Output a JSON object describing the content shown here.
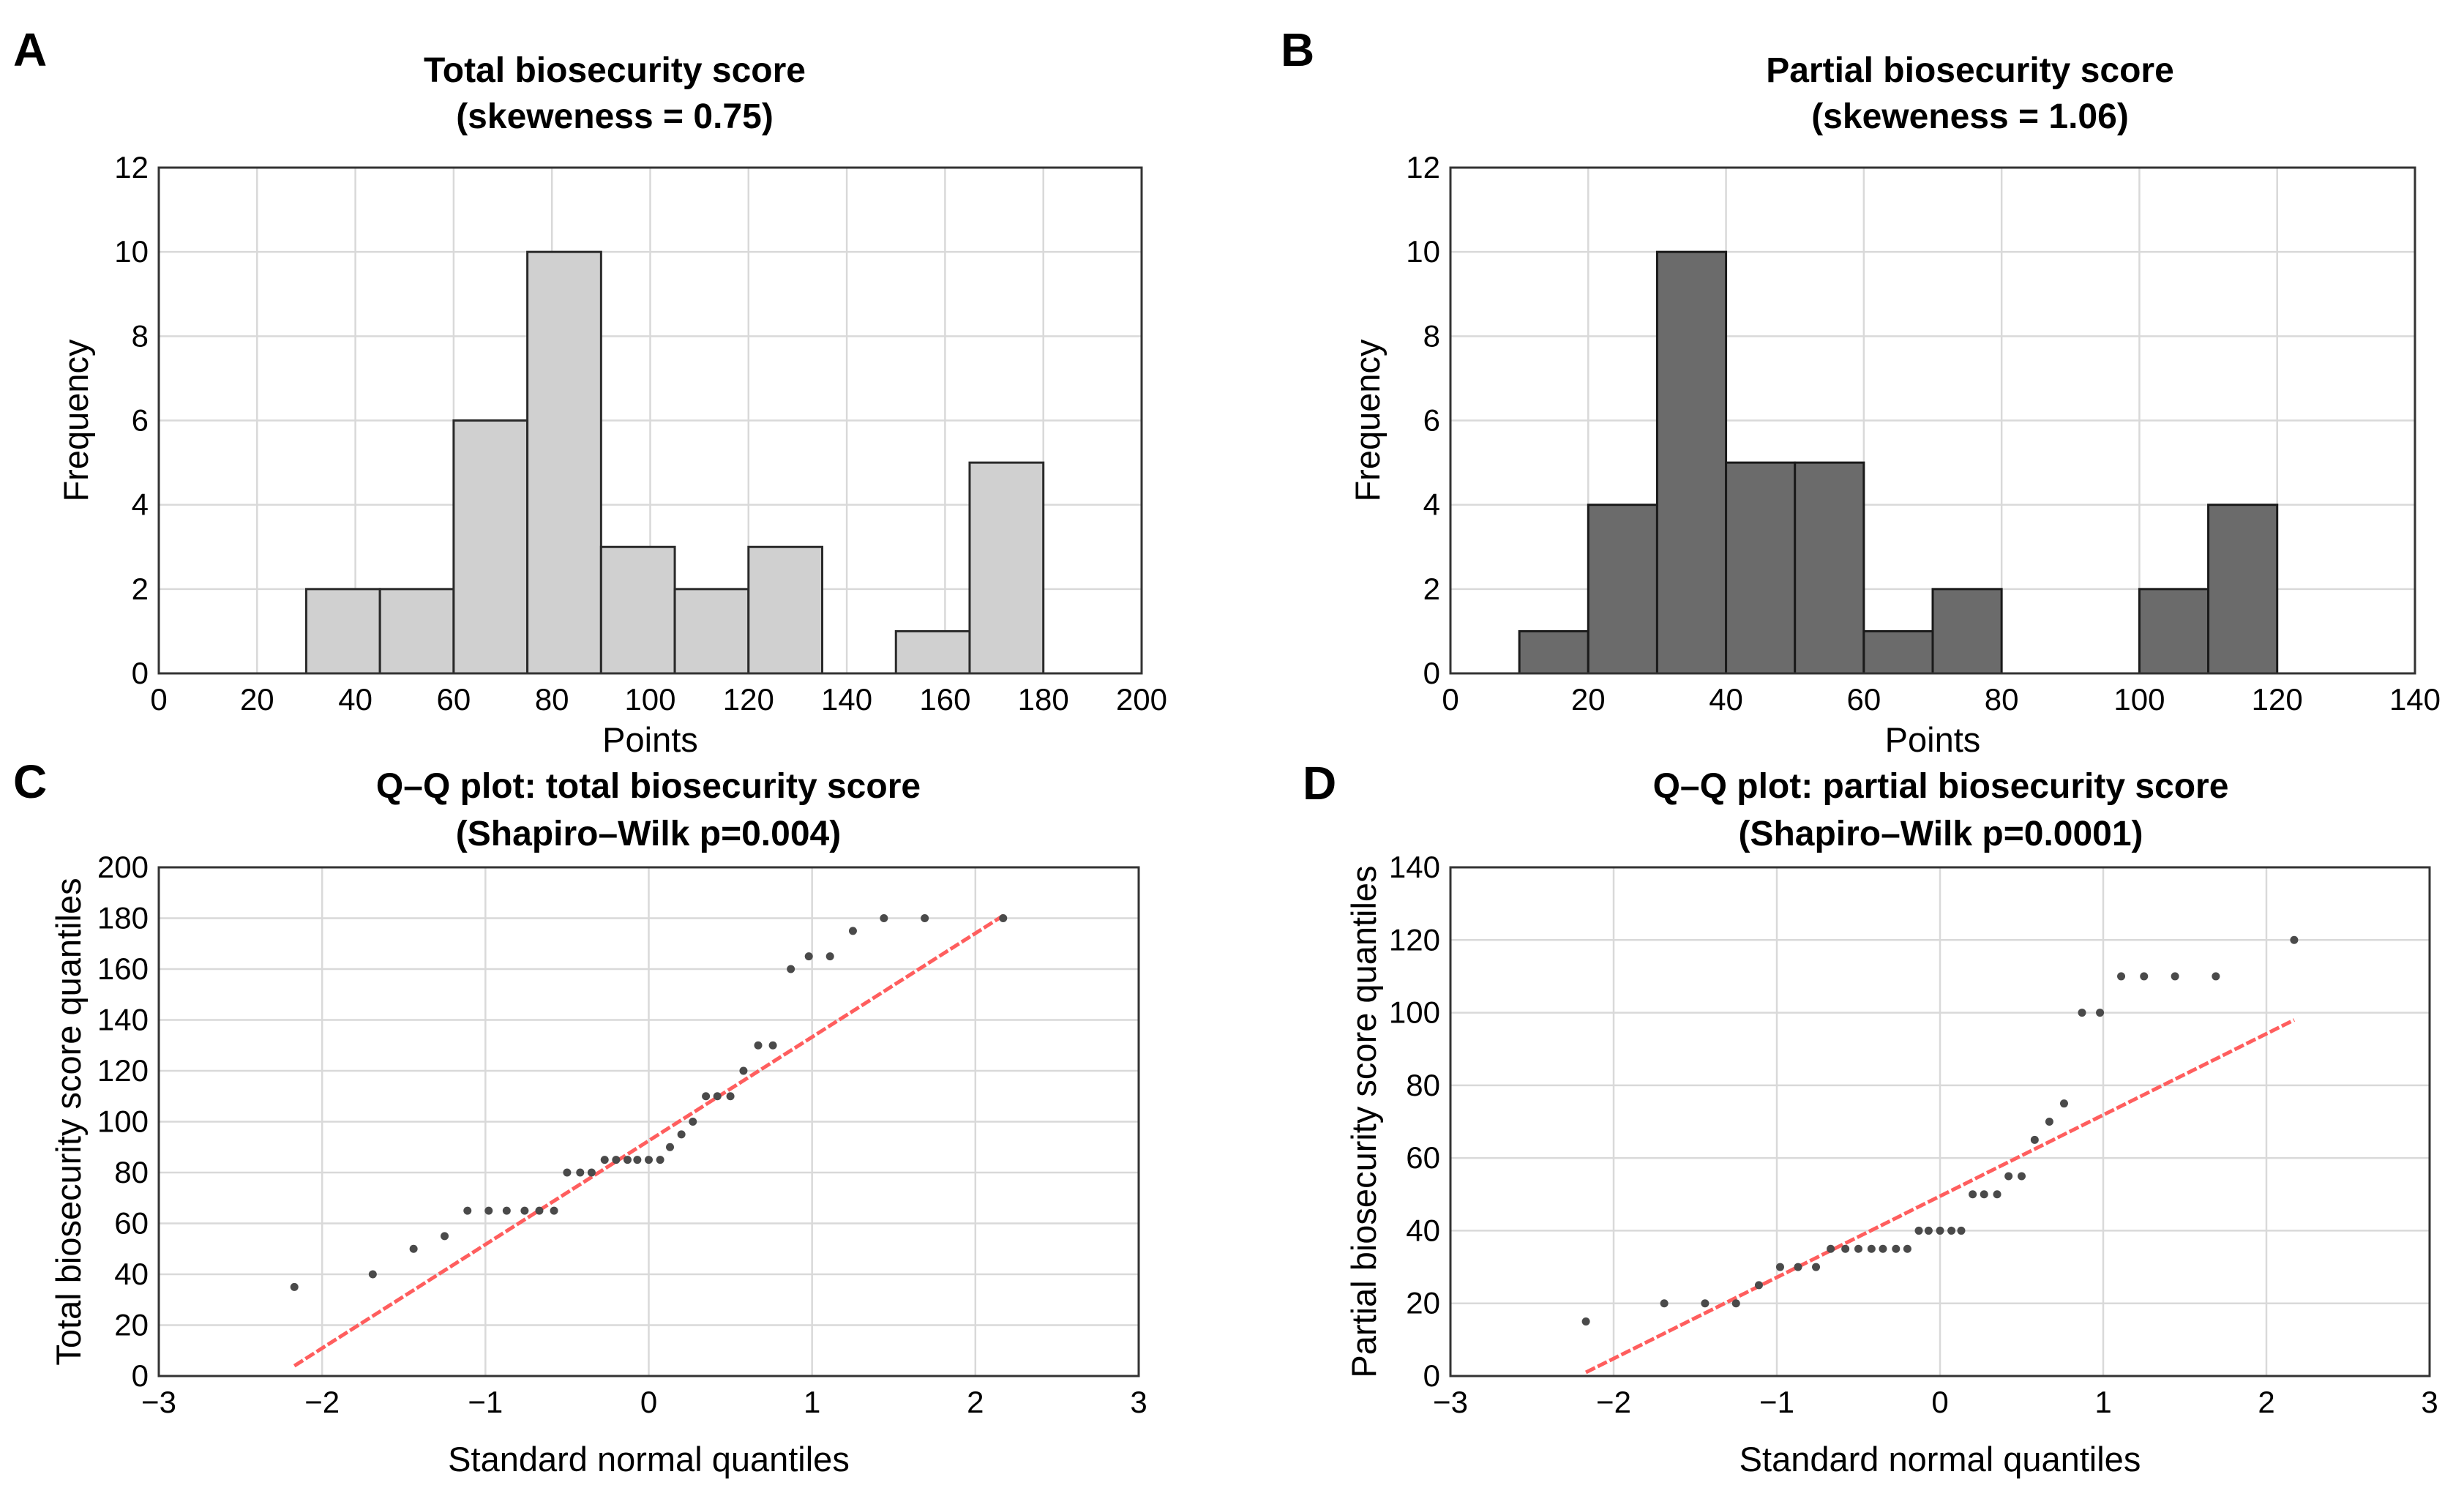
{
  "chart_data": [
    {
      "panel": "A",
      "type": "bar",
      "title": [
        "Total biosecurity score",
        "(skeweness = 0.75)"
      ],
      "xlabel": "Points",
      "ylabel": "Frequency",
      "xlim": [
        0,
        200
      ],
      "ylim": [
        0,
        12
      ],
      "xticks": [
        0,
        20,
        40,
        60,
        80,
        100,
        120,
        140,
        160,
        180,
        200
      ],
      "yticks": [
        0,
        2,
        4,
        6,
        8,
        10,
        12
      ],
      "grid": true,
      "bin_edges": [
        30,
        45,
        60,
        75,
        90,
        105,
        120,
        135,
        150,
        165,
        180
      ],
      "values": [
        2,
        2,
        6,
        10,
        3,
        2,
        3,
        0,
        1,
        5
      ],
      "color": "#d0d0d0"
    },
    {
      "panel": "B",
      "type": "bar",
      "title": [
        "Partial biosecurity score",
        "(skeweness = 1.06)"
      ],
      "xlabel": "Points",
      "ylabel": "Frequency",
      "xlim": [
        0,
        140
      ],
      "ylim": [
        0,
        12
      ],
      "xticks": [
        0,
        20,
        40,
        60,
        80,
        100,
        120,
        140
      ],
      "yticks": [
        0,
        2,
        4,
        6,
        8,
        10,
        12
      ],
      "grid": true,
      "bin_edges": [
        10,
        20,
        30,
        40,
        50,
        60,
        70,
        80,
        90,
        100,
        110,
        120
      ],
      "values": [
        1,
        4,
        10,
        5,
        5,
        1,
        2,
        0,
        0,
        2,
        4
      ],
      "color": "#6b6b6b"
    },
    {
      "panel": "C",
      "type": "scatter",
      "title": [
        "Q–Q plot: total biosecurity score",
        "(Shapiro–Wilk p=0.004)"
      ],
      "xlabel": "Standard normal quantiles",
      "ylabel": "Total biosecurity score quantiles",
      "xlim": [
        -3,
        3
      ],
      "ylim": [
        0,
        200
      ],
      "xticks": [
        -3,
        -2,
        -1,
        0,
        1,
        2,
        3
      ],
      "yticks": [
        0,
        20,
        40,
        60,
        80,
        100,
        120,
        140,
        160,
        180,
        200
      ],
      "grid": true,
      "x": [
        -2.17,
        -1.69,
        -1.44,
        -1.25,
        -1.11,
        -0.98,
        -0.87,
        -0.76,
        -0.67,
        -0.58,
        -0.5,
        -0.42,
        -0.35,
        -0.27,
        -0.2,
        -0.13,
        -0.07,
        0.0,
        0.07,
        0.13,
        0.2,
        0.27,
        0.35,
        0.42,
        0.5,
        0.58,
        0.67,
        0.76,
        0.87,
        0.98,
        1.11,
        1.25,
        1.44,
        1.69,
        2.17
      ],
      "y": [
        35,
        40,
        50,
        55,
        65,
        65,
        65,
        65,
        65,
        65,
        80,
        80,
        80,
        85,
        85,
        85,
        85,
        85,
        85,
        90,
        95,
        100,
        110,
        110,
        110,
        120,
        130,
        130,
        160,
        165,
        165,
        175,
        180,
        180,
        180
      ],
      "reference_line": {
        "x": [
          -2.17,
          2.17
        ],
        "y": [
          4,
          181
        ],
        "color": "#ff5e5e"
      }
    },
    {
      "panel": "D",
      "type": "scatter",
      "title": [
        "Q–Q plot: partial biosecurity score",
        "(Shapiro–Wilk p=0.0001)"
      ],
      "xlabel": "Standard normal quantiles",
      "ylabel": "Partial biosecurity score quantiles",
      "xlim": [
        -3,
        3
      ],
      "ylim": [
        0,
        140
      ],
      "xticks": [
        -3,
        -2,
        -1,
        0,
        1,
        2,
        3
      ],
      "yticks": [
        0,
        20,
        40,
        60,
        80,
        100,
        120,
        140
      ],
      "grid": true,
      "x": [
        -2.17,
        -1.69,
        -1.44,
        -1.25,
        -1.11,
        -0.98,
        -0.87,
        -0.76,
        -0.67,
        -0.58,
        -0.5,
        -0.42,
        -0.35,
        -0.27,
        -0.2,
        -0.13,
        -0.07,
        0.0,
        0.07,
        0.13,
        0.2,
        0.27,
        0.35,
        0.42,
        0.5,
        0.58,
        0.67,
        0.76,
        0.87,
        0.98,
        1.11,
        1.25,
        1.44,
        1.69,
        2.17
      ],
      "y": [
        15,
        20,
        20,
        20,
        25,
        30,
        30,
        30,
        35,
        35,
        35,
        35,
        35,
        35,
        35,
        40,
        40,
        40,
        40,
        40,
        50,
        50,
        50,
        55,
        55,
        65,
        70,
        75,
        100,
        100,
        110,
        110,
        110,
        110,
        120
      ],
      "reference_line": {
        "x": [
          -2.17,
          2.17
        ],
        "y": [
          1,
          98
        ],
        "color": "#ff5e5e"
      }
    }
  ]
}
